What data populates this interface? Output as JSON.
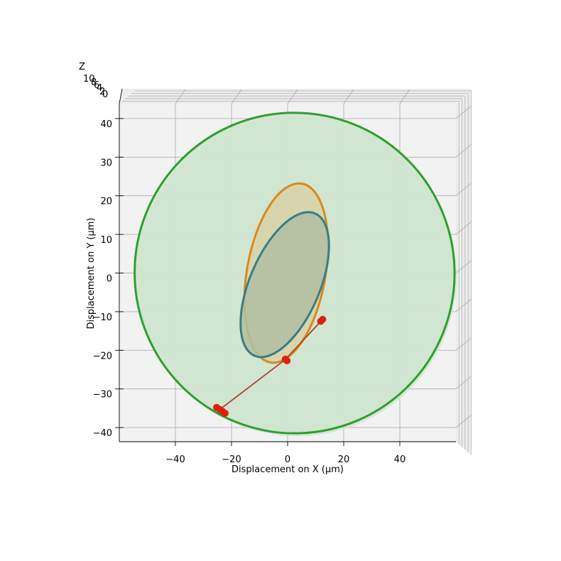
{
  "chart_data": {
    "type": "line",
    "xlabel": "Displacement on X (µm)",
    "ylabel": "Displacement on Y (µm)",
    "zlabel": "Z",
    "x_ticks": [
      -40,
      -20,
      0,
      20,
      40
    ],
    "y_ticks": [
      -40,
      -30,
      -20,
      -10,
      0,
      10,
      20,
      30,
      40
    ],
    "z_ticks": [
      "0",
      "2",
      "4",
      "6",
      "8",
      "10"
    ],
    "xlim": [
      -60,
      60
    ],
    "ylim": [
      -44,
      44
    ],
    "grid": true,
    "colors": {
      "pane": "#f2f2f2",
      "outer": "#2ca02c",
      "outer_fill": "#cfe5cf",
      "middle": "#d8891c",
      "middle_fill": "#d8d1a8",
      "inner": "#3a7d84",
      "inner_fill": "#b1bea2",
      "link": "#b4432c",
      "marker": "#e0200e"
    },
    "series": [
      {
        "id": "outer",
        "cx": 2.5,
        "cy": 0,
        "rx": 57,
        "ry": 41.5,
        "angle_deg": -23
      },
      {
        "id": "middle",
        "cx": -0.5,
        "cy": 0,
        "rx": 14,
        "ry": 23.5,
        "angle_deg": 10
      },
      {
        "id": "inner",
        "cx": -1,
        "cy": -3,
        "rx": 12.5,
        "ry": 20,
        "angle_deg": 23
      }
    ],
    "link_points": [
      {
        "x": 12.5,
        "y": -12
      },
      {
        "x": -1,
        "y": -22.5
      },
      {
        "x": -24.5,
        "y": -35.5
      }
    ],
    "markers": [
      {
        "x": 12.5,
        "y": -12
      },
      {
        "x": 11.8,
        "y": -12.5
      },
      {
        "x": -0.8,
        "y": -22.3
      },
      {
        "x": -0.2,
        "y": -22.7
      },
      {
        "x": -25.3,
        "y": -34.8
      },
      {
        "x": -24.2,
        "y": -35.3
      },
      {
        "x": -23.2,
        "y": -35.8
      },
      {
        "x": -22.3,
        "y": -36.3
      }
    ]
  }
}
